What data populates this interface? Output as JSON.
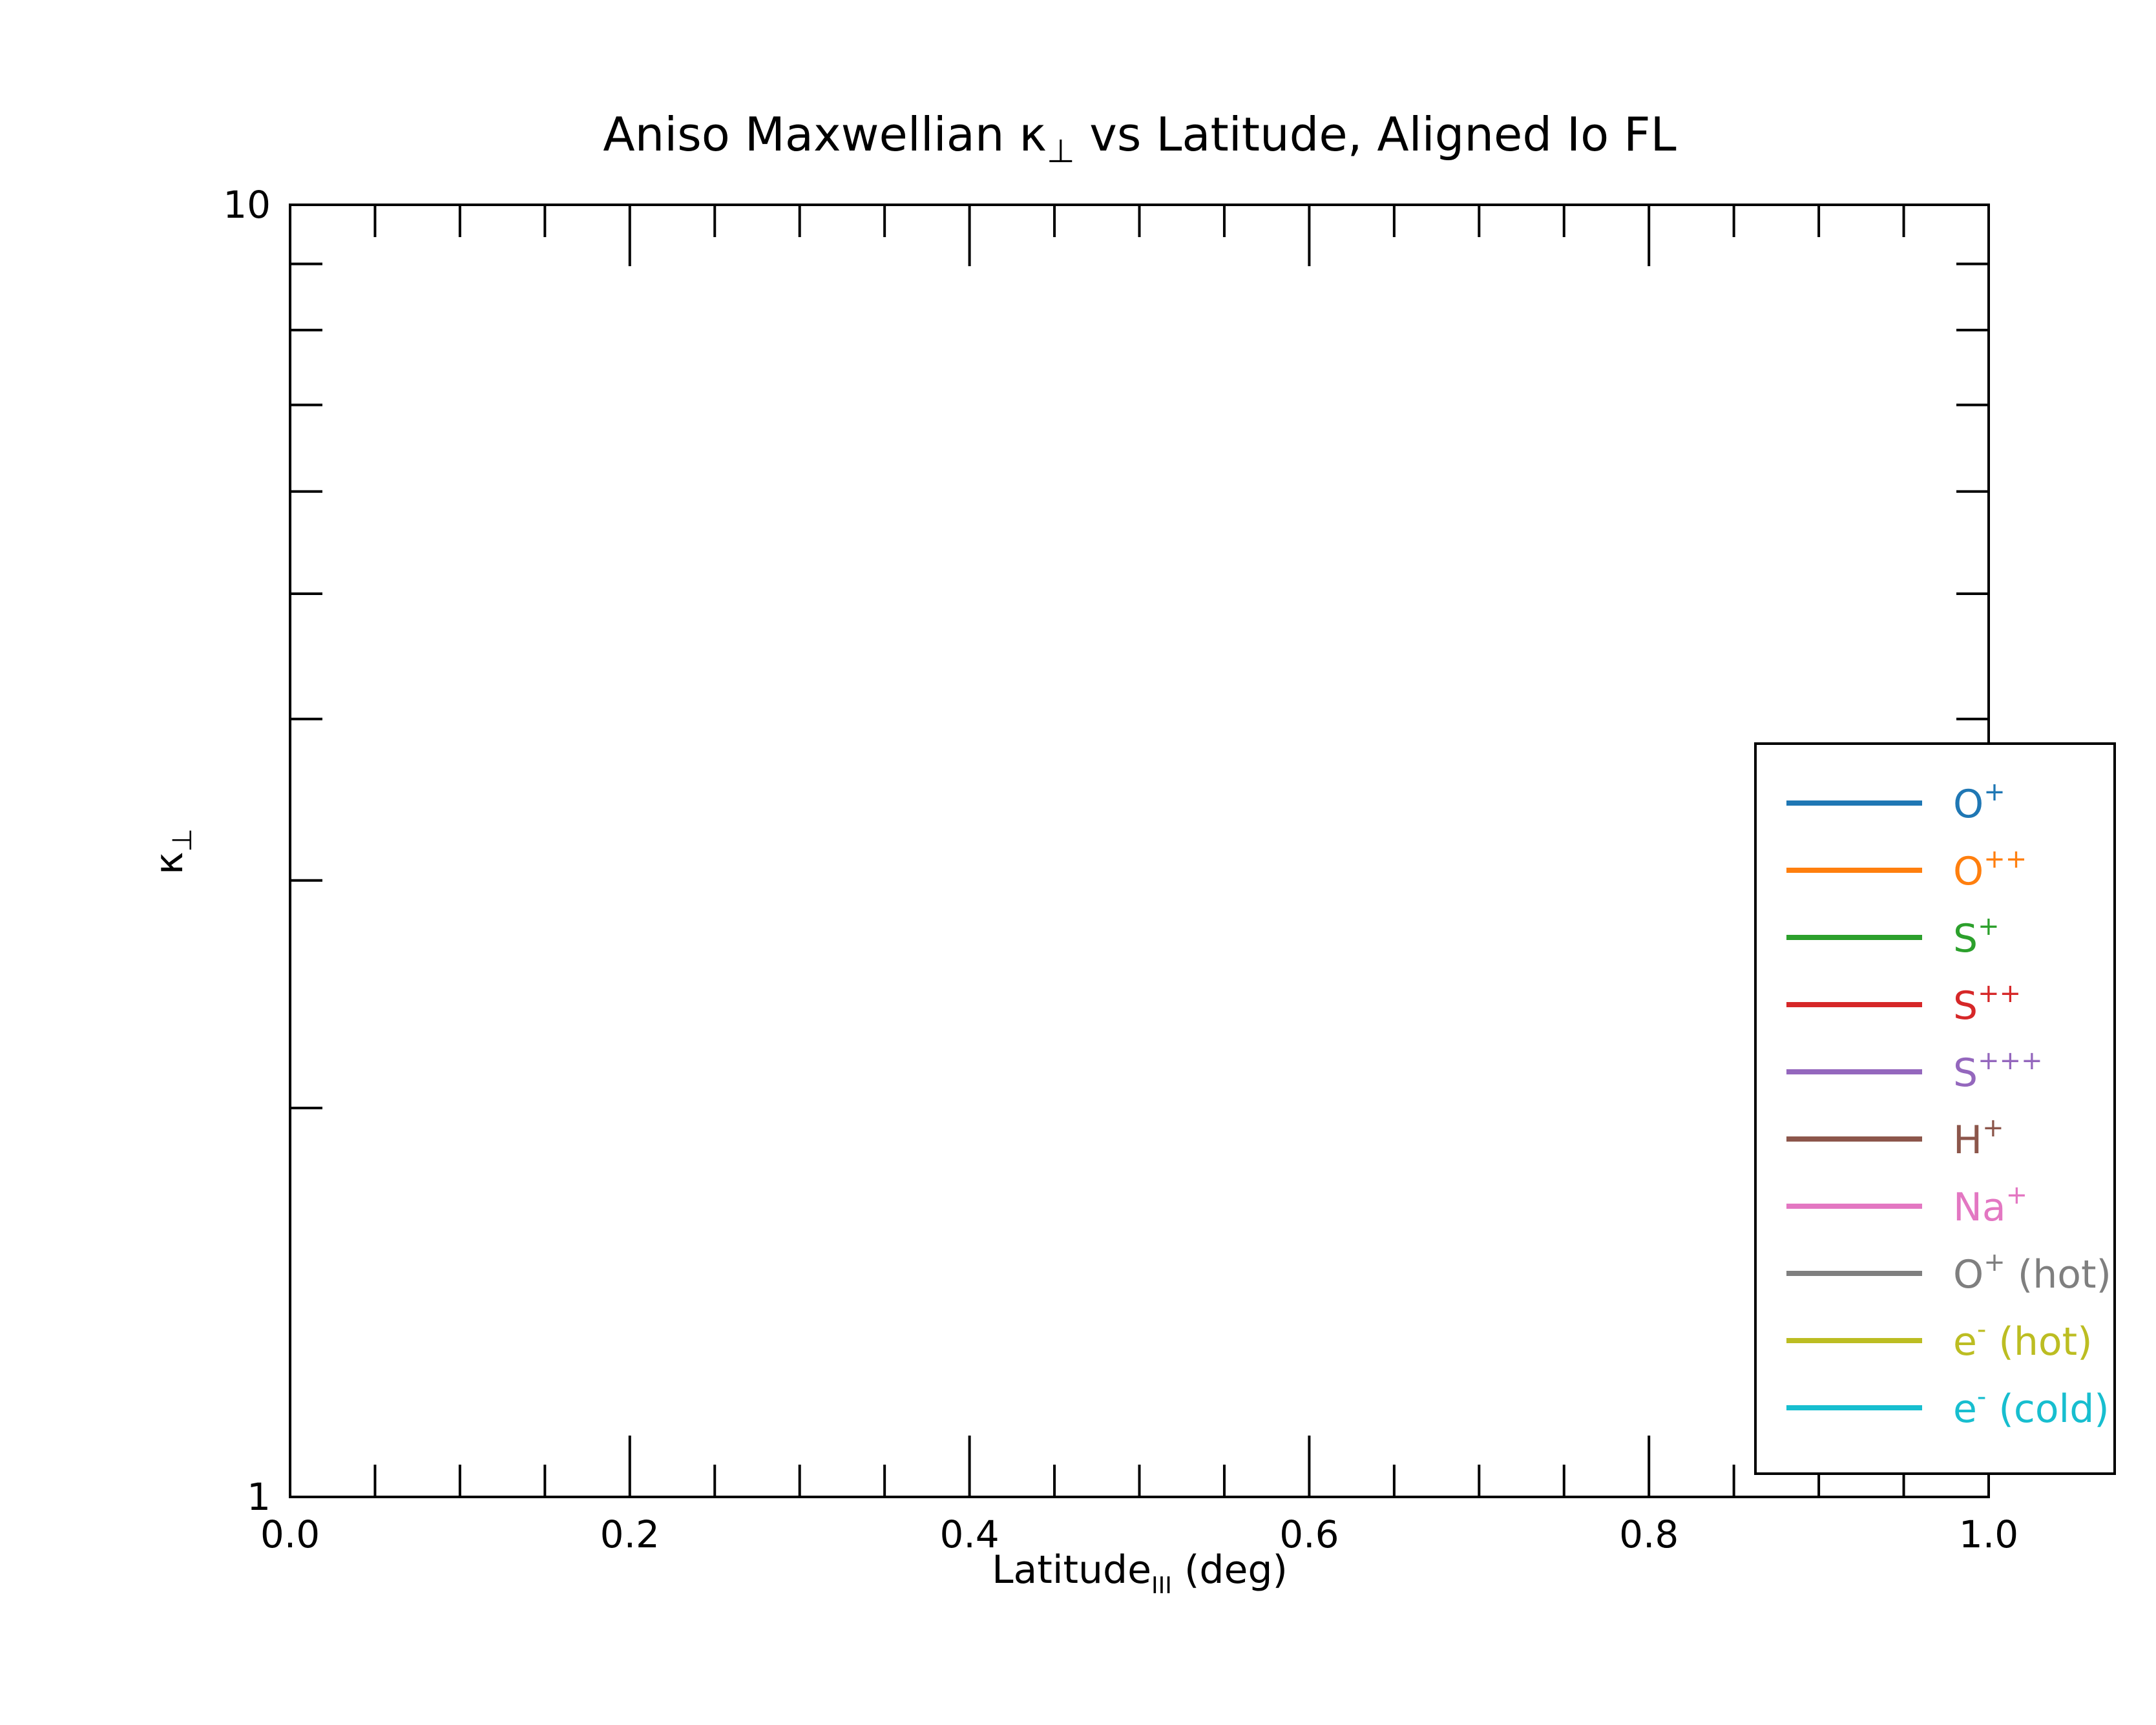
{
  "chart_data": {
    "type": "line",
    "title": {
      "main": "Aniso Maxwellian κ",
      "sub": "⊥",
      "rest": " vs Latitude, Aligned Io FL"
    },
    "xlabel": {
      "main": "Latitude",
      "sub": "III",
      "rest": " (deg)"
    },
    "ylabel": {
      "main": "κ",
      "sub": "⊥"
    },
    "xlim": [
      0.0,
      1.0
    ],
    "ylim": [
      1,
      10
    ],
    "yscale": "log",
    "grid": false,
    "x_ticks": [
      "0.0",
      "0.2",
      "0.4",
      "0.6",
      "0.8",
      "1.0"
    ],
    "y_ticks": [
      "1",
      "10"
    ],
    "legend_position": "right, overlapping axes edge",
    "series": [
      {
        "name": "O",
        "sup": "+",
        "suffix": "",
        "color": "#1f77b4",
        "x": [],
        "y": []
      },
      {
        "name": "O",
        "sup": "++",
        "suffix": "",
        "color": "#ff7f0e",
        "x": [],
        "y": []
      },
      {
        "name": "S",
        "sup": "+",
        "suffix": "",
        "color": "#2ca02c",
        "x": [],
        "y": []
      },
      {
        "name": "S",
        "sup": "++",
        "suffix": "",
        "color": "#d62728",
        "x": [],
        "y": []
      },
      {
        "name": "S",
        "sup": "+++",
        "suffix": "",
        "color": "#9467bd",
        "x": [],
        "y": []
      },
      {
        "name": "H",
        "sup": "+",
        "suffix": "",
        "color": "#8c564b",
        "x": [],
        "y": []
      },
      {
        "name": "Na",
        "sup": "+",
        "suffix": "",
        "color": "#e377c2",
        "x": [],
        "y": []
      },
      {
        "name": "O",
        "sup": "+",
        "suffix": " (hot)",
        "color": "#7f7f7f",
        "x": [],
        "y": []
      },
      {
        "name": "e",
        "sup": "-",
        "suffix": " (hot)",
        "color": "#bcbd22",
        "x": [],
        "y": []
      },
      {
        "name": "e",
        "sup": "-",
        "suffix": " (cold)",
        "color": "#17becf",
        "x": [],
        "y": []
      }
    ]
  }
}
